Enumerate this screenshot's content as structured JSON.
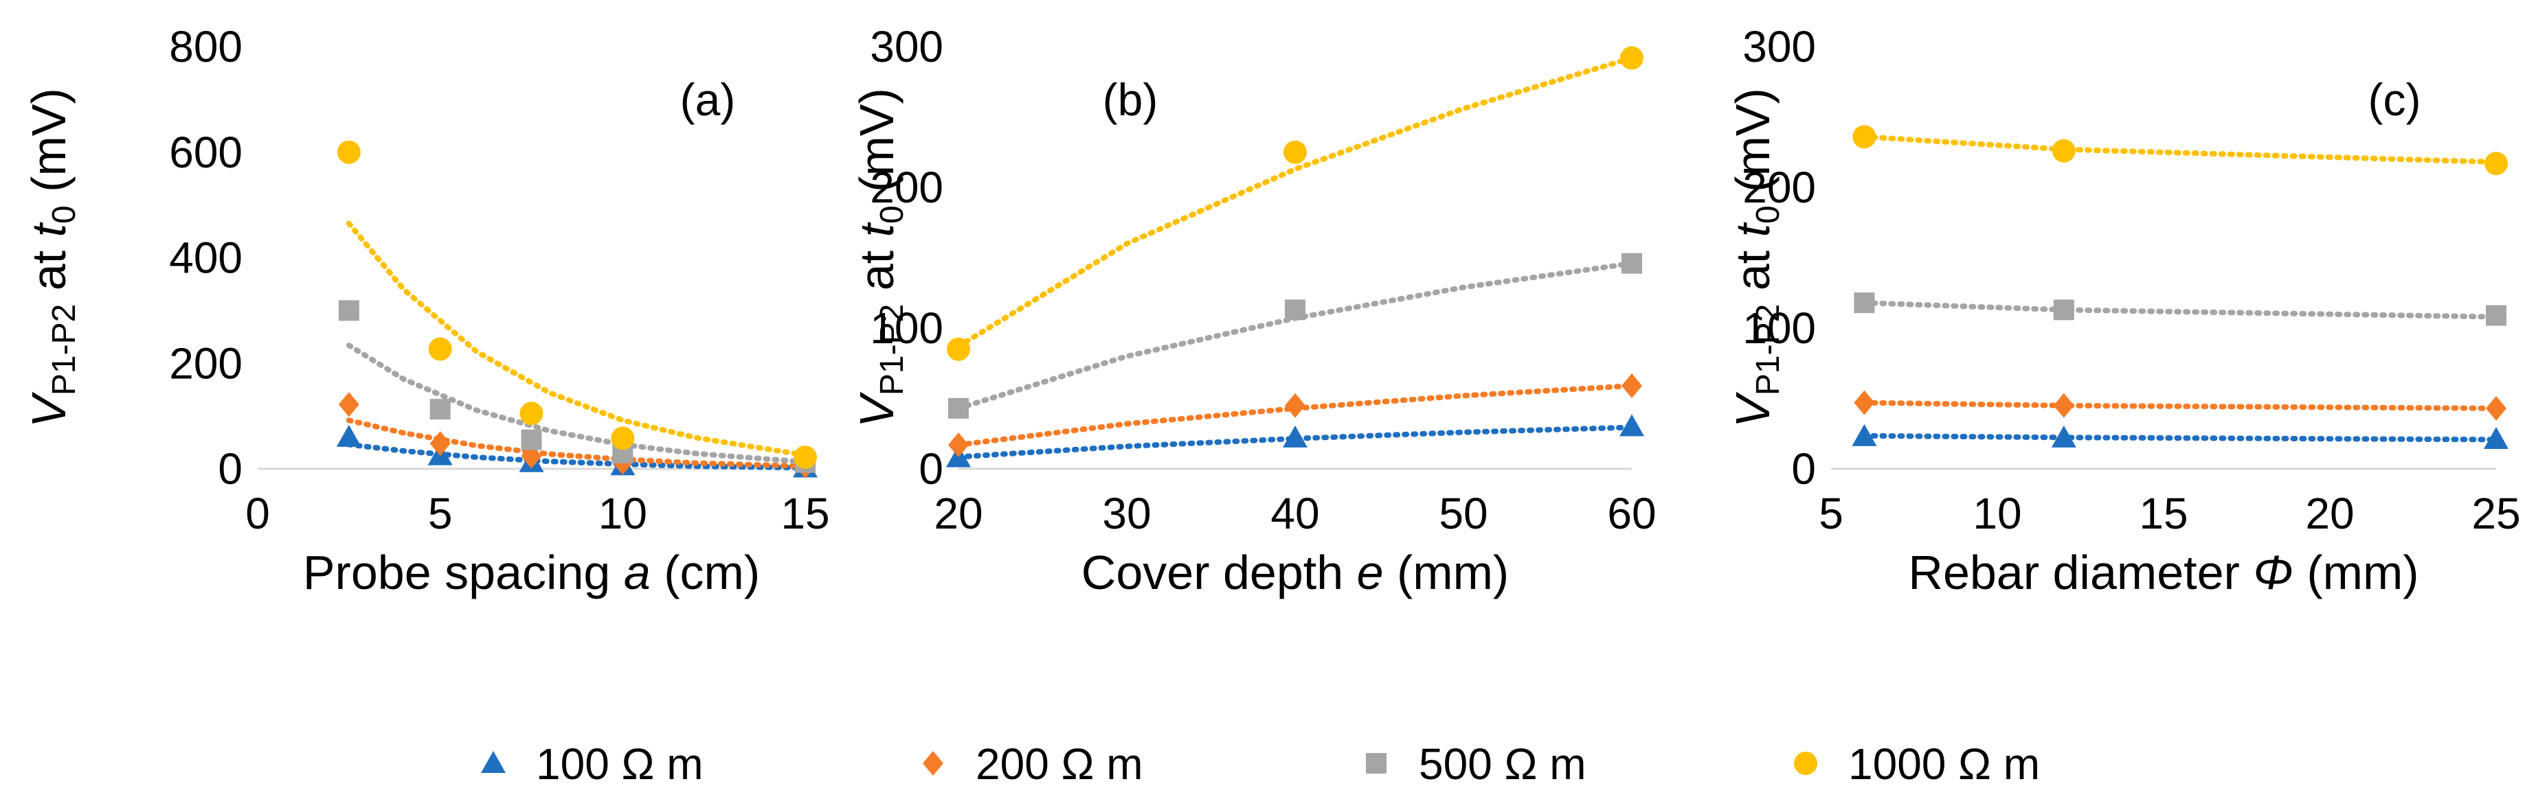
{
  "chart_data": [
    {
      "type": "scatter",
      "panel_label": "(a)",
      "xlabel": {
        "pre": "Probe spacing ",
        "var": "a",
        "post": " (cm)"
      },
      "ylabel": {
        "var": "V",
        "sub": "P1-P2",
        "mid": " at ",
        "tvar": "t",
        "tsub": "0",
        "post": " (mV)"
      },
      "xlim": [
        0,
        15
      ],
      "ylim": [
        0,
        800
      ],
      "xticks": [
        0,
        5,
        10,
        15
      ],
      "yticks": [
        0,
        200,
        400,
        600,
        800
      ],
      "series": [
        {
          "name": "100 Ω m",
          "x": [
            2.5,
            5,
            7.5,
            10,
            15
          ],
          "y": [
            60,
            25,
            12,
            6,
            2
          ],
          "trend": [
            [
              2.5,
              46
            ],
            [
              4,
              34
            ],
            [
              6,
              22
            ],
            [
              8,
              14
            ],
            [
              10,
              9
            ],
            [
              12,
              5
            ],
            [
              15,
              2
            ]
          ]
        },
        {
          "name": "200 Ω m",
          "x": [
            2.5,
            5,
            7.5,
            10,
            15
          ],
          "y": [
            122,
            48,
            24,
            12,
            5
          ],
          "trend": [
            [
              2.5,
              92
            ],
            [
              4,
              68
            ],
            [
              6,
              44
            ],
            [
              8,
              28
            ],
            [
              10,
              18
            ],
            [
              12,
              11
            ],
            [
              15,
              5
            ]
          ]
        },
        {
          "name": "500 Ω m",
          "x": [
            2.5,
            5,
            7.5,
            10,
            15
          ],
          "y": [
            300,
            113,
            55,
            30,
            12
          ],
          "trend": [
            [
              2.5,
              234
            ],
            [
              4,
              170
            ],
            [
              6,
              111
            ],
            [
              8,
              72
            ],
            [
              10,
              46
            ],
            [
              12,
              29
            ],
            [
              15,
              13
            ]
          ]
        },
        {
          "name": "1000 Ω m",
          "x": [
            2.5,
            5,
            7.5,
            10,
            15
          ],
          "y": [
            600,
            227,
            105,
            58,
            22
          ],
          "trend": [
            [
              2.5,
              465
            ],
            [
              4,
              340
            ],
            [
              6,
              222
            ],
            [
              8,
              144
            ],
            [
              10,
              92
            ],
            [
              12,
              59
            ],
            [
              15,
              26
            ]
          ]
        }
      ]
    },
    {
      "type": "scatter",
      "panel_label": "(b)",
      "xlabel": {
        "pre": "Cover depth ",
        "var": "e",
        "post": " (mm)"
      },
      "ylabel": {
        "var": "V",
        "sub": "P1-P2",
        "mid": " at ",
        "tvar": "t",
        "tsub": "0",
        "post": " (mV)"
      },
      "xlim": [
        20,
        60
      ],
      "ylim": [
        0,
        300
      ],
      "xticks": [
        20,
        30,
        40,
        50,
        60
      ],
      "yticks": [
        0,
        100,
        200,
        300
      ],
      "series": [
        {
          "name": "100 Ω m",
          "x": [
            20,
            40,
            60
          ],
          "y": [
            8,
            22,
            30
          ],
          "trend": [
            [
              20,
              8.5
            ],
            [
              30,
              16
            ],
            [
              40,
              21.5
            ],
            [
              50,
              26
            ],
            [
              60,
              29.5
            ]
          ]
        },
        {
          "name": "200 Ω m",
          "x": [
            20,
            40,
            60
          ],
          "y": [
            17,
            45,
            59
          ],
          "trend": [
            [
              20,
              17
            ],
            [
              30,
              32
            ],
            [
              40,
              43
            ],
            [
              50,
              52
            ],
            [
              60,
              59
            ]
          ]
        },
        {
          "name": "500 Ω m",
          "x": [
            20,
            40,
            60
          ],
          "y": [
            43,
            113,
            146
          ],
          "trend": [
            [
              20,
              43
            ],
            [
              30,
              80
            ],
            [
              40,
              107
            ],
            [
              50,
              129
            ],
            [
              60,
              146
            ]
          ]
        },
        {
          "name": "1000 Ω m",
          "x": [
            20,
            40,
            60
          ],
          "y": [
            85,
            225,
            292
          ],
          "trend": [
            [
              20,
              87
            ],
            [
              30,
              160
            ],
            [
              40,
              213
            ],
            [
              50,
              256
            ],
            [
              60,
              292
            ]
          ]
        }
      ]
    },
    {
      "type": "scatter",
      "panel_label": "(c)",
      "xlabel": {
        "pre": "Rebar diameter ",
        "var": "Φ",
        "post": " (mm)"
      },
      "ylabel": {
        "var": "V",
        "sub": "P1-P2",
        "mid": " at ",
        "tvar": "t",
        "tsub": "0",
        "post": " (mV)"
      },
      "xlim": [
        5,
        25
      ],
      "ylim": [
        0,
        300
      ],
      "xticks": [
        5,
        10,
        15,
        20,
        25
      ],
      "yticks": [
        0,
        100,
        200,
        300
      ],
      "series": [
        {
          "name": "100 Ω m",
          "x": [
            6,
            12,
            25
          ],
          "y": [
            23,
            22,
            21
          ],
          "trend": [
            [
              6,
              23.5
            ],
            [
              12,
              22.3
            ],
            [
              25,
              20.8
            ]
          ]
        },
        {
          "name": "200 Ω m",
          "x": [
            6,
            12,
            25
          ],
          "y": [
            47,
            45,
            43
          ],
          "trend": [
            [
              6,
              47
            ],
            [
              12,
              45
            ],
            [
              25,
              43
            ]
          ]
        },
        {
          "name": "500 Ω m",
          "x": [
            6,
            12,
            25
          ],
          "y": [
            118,
            113,
            109
          ],
          "trend": [
            [
              6,
              118
            ],
            [
              12,
              113
            ],
            [
              25,
              108
            ]
          ]
        },
        {
          "name": "1000 Ω m",
          "x": [
            6,
            12,
            25
          ],
          "y": [
            236,
            226,
            217
          ],
          "trend": [
            [
              6,
              236
            ],
            [
              12,
              227
            ],
            [
              25,
              218
            ]
          ]
        }
      ]
    }
  ],
  "legend": [
    {
      "label": "100 Ω m",
      "marker": "triangle",
      "color": "#1f6fc1"
    },
    {
      "label": "200 Ω m",
      "marker": "diamond",
      "color": "#f57c26"
    },
    {
      "label": "500 Ω m",
      "marker": "square",
      "color": "#a5a5a5"
    },
    {
      "label": "1000 Ω m",
      "marker": "circle",
      "color": "#ffc000"
    }
  ]
}
